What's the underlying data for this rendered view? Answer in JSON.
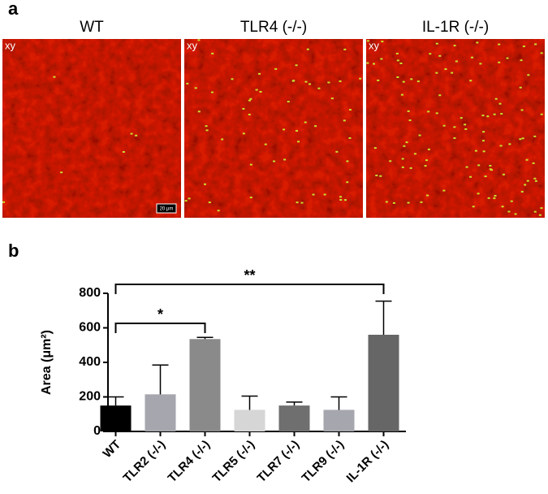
{
  "figure": {
    "panel_a_label": "a",
    "panel_b_label": "b",
    "images": [
      {
        "title": "WT",
        "tag": "xy"
      },
      {
        "title": "TLR4 (-/-)",
        "tag": "xy"
      },
      {
        "title": "IL-1R (-/-)",
        "tag": "xy"
      }
    ],
    "scale_bar": "20 μm"
  },
  "chart_data": {
    "type": "bar",
    "y_label": "Area (μm²)",
    "categories": [
      "WT",
      "TLR2 (-/-)",
      "TLR4 (-/-)",
      "TLR5 (-/-)",
      "TLR7 (-/-)",
      "TLR9 (-/-)",
      "IL-1R (-/-)"
    ],
    "values": [
      150,
      215,
      535,
      125,
      150,
      125,
      560
    ],
    "errors": [
      50,
      170,
      10,
      80,
      20,
      75,
      195
    ],
    "colors": [
      "#000000",
      "#a6a6ae",
      "#8a8a8a",
      "#d6d6d6",
      "#6f6f6f",
      "#a6a6ae",
      "#666666"
    ],
    "ylim": [
      0,
      800
    ],
    "yticks": [
      0,
      200,
      400,
      600,
      800
    ],
    "annotations": [
      {
        "text": "*",
        "from": 0,
        "to": 2
      },
      {
        "text": "**",
        "from": 0,
        "to": 6
      }
    ]
  }
}
